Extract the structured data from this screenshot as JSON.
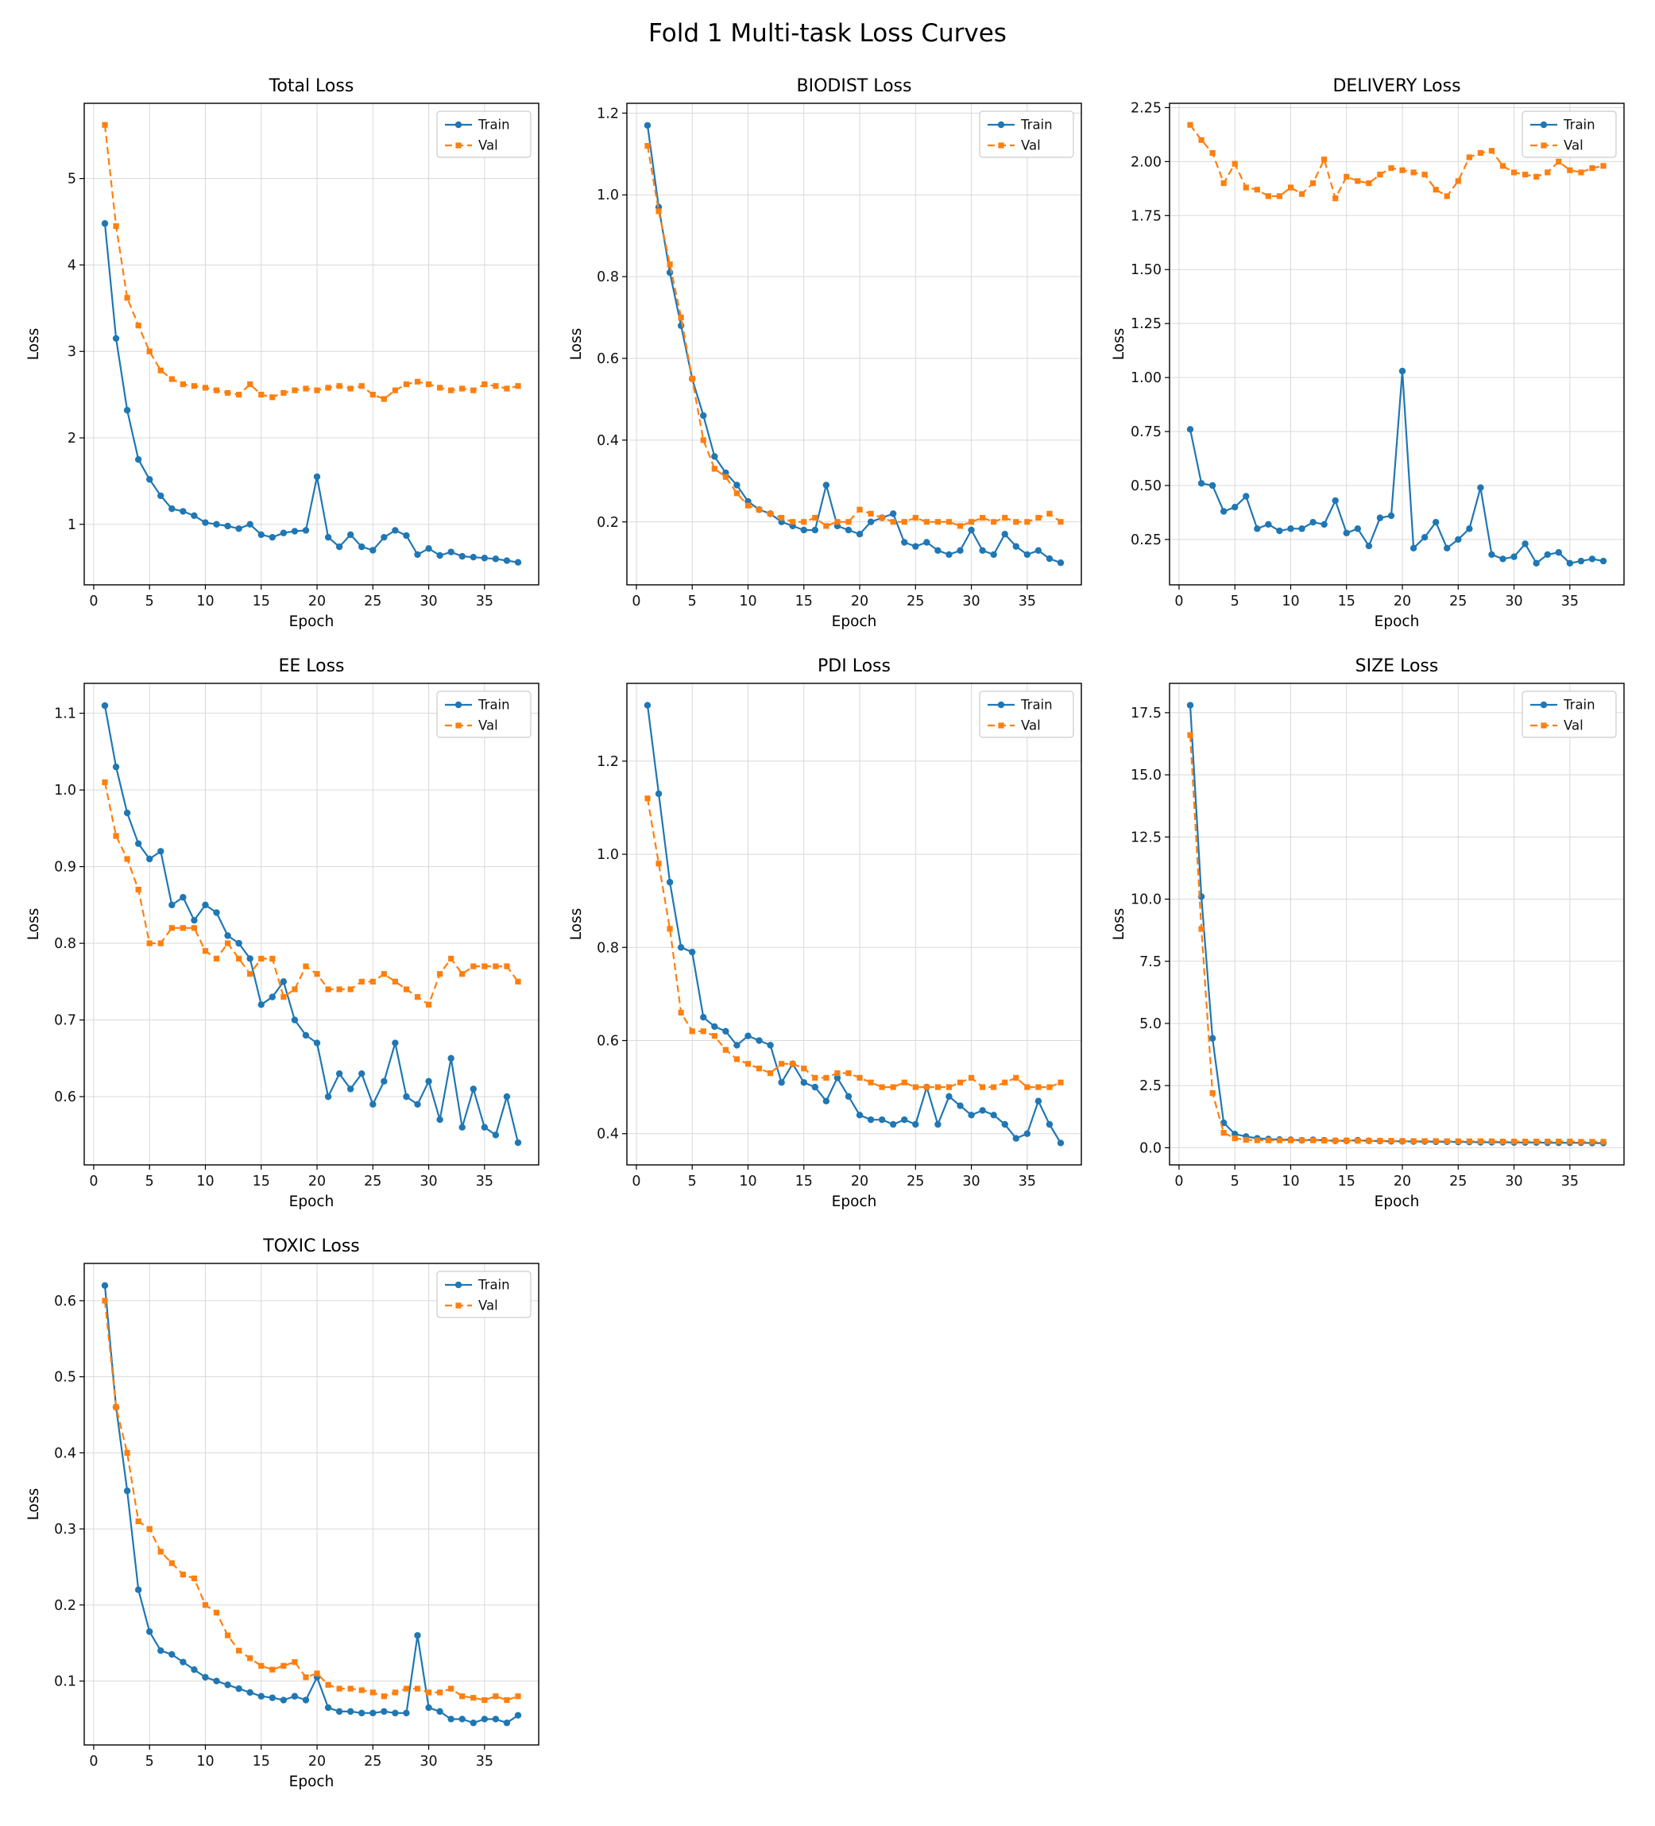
{
  "figure": {
    "title": "Fold 1 Multi-task Loss Curves"
  },
  "colors": {
    "train": "#1f77b4",
    "val": "#ff7f0e"
  },
  "chart_data": [
    {
      "type": "line",
      "title": "Total Loss",
      "xlabel": "Epoch",
      "ylabel": "Loss",
      "grid": true,
      "legend_position": "top-right",
      "xlim": [
        -0.85,
        39.85
      ],
      "ylim": [
        0.3,
        5.87
      ],
      "xticks": [
        0,
        5,
        10,
        15,
        20,
        25,
        30,
        35
      ],
      "yticks": [
        1,
        2,
        3,
        4,
        5
      ],
      "ytick_labels": [
        "1",
        "2",
        "3",
        "4",
        "5"
      ],
      "x": [
        1,
        2,
        3,
        4,
        5,
        6,
        7,
        8,
        9,
        10,
        11,
        12,
        13,
        14,
        15,
        16,
        17,
        18,
        19,
        20,
        21,
        22,
        23,
        24,
        25,
        26,
        27,
        28,
        29,
        30,
        31,
        32,
        33,
        34,
        35,
        36,
        37,
        38
      ],
      "series": [
        {
          "name": "Train",
          "color": "#1f77b4",
          "line": "solid",
          "marker": "circle",
          "values": [
            4.48,
            3.15,
            2.32,
            1.75,
            1.52,
            1.33,
            1.18,
            1.15,
            1.1,
            1.02,
            1.0,
            0.98,
            0.95,
            1.0,
            0.88,
            0.85,
            0.9,
            0.92,
            0.93,
            1.55,
            0.85,
            0.74,
            0.88,
            0.74,
            0.7,
            0.85,
            0.93,
            0.87,
            0.65,
            0.72,
            0.64,
            0.68,
            0.63,
            0.62,
            0.61,
            0.6,
            0.58,
            0.56
          ]
        },
        {
          "name": "Val",
          "color": "#ff7f0e",
          "line": "dashed",
          "marker": "square",
          "values": [
            5.62,
            4.45,
            3.62,
            3.3,
            3.0,
            2.78,
            2.68,
            2.62,
            2.6,
            2.58,
            2.55,
            2.52,
            2.5,
            2.62,
            2.5,
            2.47,
            2.52,
            2.55,
            2.57,
            2.55,
            2.58,
            2.6,
            2.57,
            2.6,
            2.5,
            2.45,
            2.55,
            2.62,
            2.65,
            2.62,
            2.58,
            2.55,
            2.57,
            2.55,
            2.62,
            2.6,
            2.57,
            2.6
          ]
        }
      ]
    },
    {
      "type": "line",
      "title": "BIODIST Loss",
      "xlabel": "Epoch",
      "ylabel": "Loss",
      "grid": true,
      "legend_position": "top-right",
      "xlim": [
        -0.85,
        39.85
      ],
      "ylim": [
        0.046,
        1.224
      ],
      "xticks": [
        0,
        5,
        10,
        15,
        20,
        25,
        30,
        35
      ],
      "yticks": [
        0.2,
        0.4,
        0.6,
        0.8,
        1.0,
        1.2
      ],
      "ytick_labels": [
        "0.2",
        "0.4",
        "0.6",
        "0.8",
        "1.0",
        "1.2"
      ],
      "x": [
        1,
        2,
        3,
        4,
        5,
        6,
        7,
        8,
        9,
        10,
        11,
        12,
        13,
        14,
        15,
        16,
        17,
        18,
        19,
        20,
        21,
        22,
        23,
        24,
        25,
        26,
        27,
        28,
        29,
        30,
        31,
        32,
        33,
        34,
        35,
        36,
        37,
        38
      ],
      "series": [
        {
          "name": "Train",
          "color": "#1f77b4",
          "line": "solid",
          "marker": "circle",
          "values": [
            1.17,
            0.97,
            0.81,
            0.68,
            0.55,
            0.46,
            0.36,
            0.32,
            0.29,
            0.25,
            0.23,
            0.22,
            0.2,
            0.19,
            0.18,
            0.18,
            0.29,
            0.19,
            0.18,
            0.17,
            0.2,
            0.21,
            0.22,
            0.15,
            0.14,
            0.15,
            0.13,
            0.12,
            0.13,
            0.18,
            0.13,
            0.12,
            0.17,
            0.14,
            0.12,
            0.13,
            0.11,
            0.1
          ]
        },
        {
          "name": "Val",
          "color": "#ff7f0e",
          "line": "dashed",
          "marker": "square",
          "values": [
            1.12,
            0.96,
            0.83,
            0.7,
            0.55,
            0.4,
            0.33,
            0.31,
            0.27,
            0.24,
            0.23,
            0.22,
            0.21,
            0.2,
            0.2,
            0.21,
            0.19,
            0.2,
            0.2,
            0.23,
            0.22,
            0.21,
            0.2,
            0.2,
            0.21,
            0.2,
            0.2,
            0.2,
            0.19,
            0.2,
            0.21,
            0.2,
            0.21,
            0.2,
            0.2,
            0.21,
            0.22,
            0.2
          ]
        }
      ]
    },
    {
      "type": "line",
      "title": "DELIVERY Loss",
      "xlabel": "Epoch",
      "ylabel": "Loss",
      "grid": true,
      "legend_position": "top-right",
      "xlim": [
        -0.85,
        39.85
      ],
      "ylim": [
        0.04,
        2.27
      ],
      "xticks": [
        0,
        5,
        10,
        15,
        20,
        25,
        30,
        35
      ],
      "yticks": [
        0.25,
        0.5,
        0.75,
        1.0,
        1.25,
        1.5,
        1.75,
        2.0,
        2.25
      ],
      "ytick_labels": [
        "0.25",
        "0.50",
        "0.75",
        "1.00",
        "1.25",
        "1.50",
        "1.75",
        "2.00",
        "2.25"
      ],
      "x": [
        1,
        2,
        3,
        4,
        5,
        6,
        7,
        8,
        9,
        10,
        11,
        12,
        13,
        14,
        15,
        16,
        17,
        18,
        19,
        20,
        21,
        22,
        23,
        24,
        25,
        26,
        27,
        28,
        29,
        30,
        31,
        32,
        33,
        34,
        35,
        36,
        37,
        38
      ],
      "series": [
        {
          "name": "Train",
          "color": "#1f77b4",
          "line": "solid",
          "marker": "circle",
          "values": [
            0.76,
            0.51,
            0.5,
            0.38,
            0.4,
            0.45,
            0.3,
            0.32,
            0.29,
            0.3,
            0.3,
            0.33,
            0.32,
            0.43,
            0.28,
            0.3,
            0.22,
            0.35,
            0.36,
            1.03,
            0.21,
            0.26,
            0.33,
            0.21,
            0.25,
            0.3,
            0.49,
            0.18,
            0.16,
            0.17,
            0.23,
            0.14,
            0.18,
            0.19,
            0.14,
            0.15,
            0.16,
            0.15
          ]
        },
        {
          "name": "Val",
          "color": "#ff7f0e",
          "line": "dashed",
          "marker": "square",
          "values": [
            2.17,
            2.1,
            2.04,
            1.9,
            1.99,
            1.88,
            1.87,
            1.84,
            1.84,
            1.88,
            1.85,
            1.9,
            2.01,
            1.83,
            1.93,
            1.91,
            1.9,
            1.94,
            1.97,
            1.96,
            1.95,
            1.94,
            1.87,
            1.84,
            1.91,
            2.02,
            2.04,
            2.05,
            1.98,
            1.95,
            1.94,
            1.93,
            1.95,
            2.0,
            1.96,
            1.95,
            1.97,
            1.98
          ]
        }
      ]
    },
    {
      "type": "line",
      "title": "EE Loss",
      "xlabel": "Epoch",
      "ylabel": "Loss",
      "grid": true,
      "legend_position": "top-right",
      "xlim": [
        -0.85,
        39.85
      ],
      "ylim": [
        0.511,
        1.139
      ],
      "xticks": [
        0,
        5,
        10,
        15,
        20,
        25,
        30,
        35
      ],
      "yticks": [
        0.6,
        0.7,
        0.8,
        0.9,
        1.0,
        1.1
      ],
      "ytick_labels": [
        "0.6",
        "0.7",
        "0.8",
        "0.9",
        "1.0",
        "1.1"
      ],
      "x": [
        1,
        2,
        3,
        4,
        5,
        6,
        7,
        8,
        9,
        10,
        11,
        12,
        13,
        14,
        15,
        16,
        17,
        18,
        19,
        20,
        21,
        22,
        23,
        24,
        25,
        26,
        27,
        28,
        29,
        30,
        31,
        32,
        33,
        34,
        35,
        36,
        37,
        38
      ],
      "series": [
        {
          "name": "Train",
          "color": "#1f77b4",
          "line": "solid",
          "marker": "circle",
          "values": [
            1.11,
            1.03,
            0.97,
            0.93,
            0.91,
            0.92,
            0.85,
            0.86,
            0.83,
            0.85,
            0.84,
            0.81,
            0.8,
            0.78,
            0.72,
            0.73,
            0.75,
            0.7,
            0.68,
            0.67,
            0.6,
            0.63,
            0.61,
            0.63,
            0.59,
            0.62,
            0.67,
            0.6,
            0.59,
            0.62,
            0.57,
            0.65,
            0.56,
            0.61,
            0.56,
            0.55,
            0.6,
            0.54
          ]
        },
        {
          "name": "Val",
          "color": "#ff7f0e",
          "line": "dashed",
          "marker": "square",
          "values": [
            1.01,
            0.94,
            0.91,
            0.87,
            0.8,
            0.8,
            0.82,
            0.82,
            0.82,
            0.79,
            0.78,
            0.8,
            0.78,
            0.76,
            0.78,
            0.78,
            0.73,
            0.74,
            0.77,
            0.76,
            0.74,
            0.74,
            0.74,
            0.75,
            0.75,
            0.76,
            0.75,
            0.74,
            0.73,
            0.72,
            0.76,
            0.78,
            0.76,
            0.77,
            0.77,
            0.77,
            0.77,
            0.75
          ]
        }
      ]
    },
    {
      "type": "line",
      "title": "PDI Loss",
      "xlabel": "Epoch",
      "ylabel": "Loss",
      "grid": true,
      "legend_position": "top-right",
      "xlim": [
        -0.85,
        39.85
      ],
      "ylim": [
        0.333,
        1.367
      ],
      "xticks": [
        0,
        5,
        10,
        15,
        20,
        25,
        30,
        35
      ],
      "yticks": [
        0.4,
        0.6,
        0.8,
        1.0,
        1.2
      ],
      "ytick_labels": [
        "0.4",
        "0.6",
        "0.8",
        "1.0",
        "1.2"
      ],
      "x": [
        1,
        2,
        3,
        4,
        5,
        6,
        7,
        8,
        9,
        10,
        11,
        12,
        13,
        14,
        15,
        16,
        17,
        18,
        19,
        20,
        21,
        22,
        23,
        24,
        25,
        26,
        27,
        28,
        29,
        30,
        31,
        32,
        33,
        34,
        35,
        36,
        37,
        38
      ],
      "series": [
        {
          "name": "Train",
          "color": "#1f77b4",
          "line": "solid",
          "marker": "circle",
          "values": [
            1.32,
            1.13,
            0.94,
            0.8,
            0.79,
            0.65,
            0.63,
            0.62,
            0.59,
            0.61,
            0.6,
            0.59,
            0.51,
            0.55,
            0.51,
            0.5,
            0.47,
            0.52,
            0.48,
            0.44,
            0.43,
            0.43,
            0.42,
            0.43,
            0.42,
            0.5,
            0.42,
            0.48,
            0.46,
            0.44,
            0.45,
            0.44,
            0.42,
            0.39,
            0.4,
            0.47,
            0.42,
            0.38
          ]
        },
        {
          "name": "Val",
          "color": "#ff7f0e",
          "line": "dashed",
          "marker": "square",
          "values": [
            1.12,
            0.98,
            0.84,
            0.66,
            0.62,
            0.62,
            0.61,
            0.58,
            0.56,
            0.55,
            0.54,
            0.53,
            0.55,
            0.55,
            0.54,
            0.52,
            0.52,
            0.53,
            0.53,
            0.52,
            0.51,
            0.5,
            0.5,
            0.51,
            0.5,
            0.5,
            0.5,
            0.5,
            0.51,
            0.52,
            0.5,
            0.5,
            0.51,
            0.52,
            0.5,
            0.5,
            0.5,
            0.51
          ]
        }
      ]
    },
    {
      "type": "line",
      "title": "SIZE Loss",
      "xlabel": "Epoch",
      "ylabel": "Loss",
      "grid": true,
      "legend_position": "top-right",
      "xlim": [
        -0.85,
        39.85
      ],
      "ylim": [
        -0.69,
        18.68
      ],
      "xticks": [
        0,
        5,
        10,
        15,
        20,
        25,
        30,
        35
      ],
      "yticks": [
        0.0,
        2.5,
        5.0,
        7.5,
        10.0,
        12.5,
        15.0,
        17.5
      ],
      "ytick_labels": [
        "0.0",
        "2.5",
        "5.0",
        "7.5",
        "10.0",
        "12.5",
        "15.0",
        "17.5"
      ],
      "x": [
        1,
        2,
        3,
        4,
        5,
        6,
        7,
        8,
        9,
        10,
        11,
        12,
        13,
        14,
        15,
        16,
        17,
        18,
        19,
        20,
        21,
        22,
        23,
        24,
        25,
        26,
        27,
        28,
        29,
        30,
        31,
        32,
        33,
        34,
        35,
        36,
        37,
        38
      ],
      "series": [
        {
          "name": "Train",
          "color": "#1f77b4",
          "line": "solid",
          "marker": "circle",
          "values": [
            17.8,
            10.1,
            4.4,
            1.0,
            0.55,
            0.45,
            0.38,
            0.35,
            0.33,
            0.32,
            0.3,
            0.32,
            0.3,
            0.28,
            0.28,
            0.3,
            0.28,
            0.27,
            0.26,
            0.26,
            0.25,
            0.25,
            0.24,
            0.24,
            0.23,
            0.23,
            0.22,
            0.22,
            0.22,
            0.21,
            0.21,
            0.21,
            0.2,
            0.2,
            0.2,
            0.2,
            0.19,
            0.19
          ]
        },
        {
          "name": "Val",
          "color": "#ff7f0e",
          "line": "dashed",
          "marker": "square",
          "values": [
            16.6,
            8.8,
            2.2,
            0.6,
            0.38,
            0.32,
            0.3,
            0.3,
            0.3,
            0.3,
            0.3,
            0.3,
            0.29,
            0.29,
            0.29,
            0.28,
            0.28,
            0.28,
            0.28,
            0.27,
            0.27,
            0.27,
            0.27,
            0.26,
            0.26,
            0.26,
            0.26,
            0.26,
            0.25,
            0.25,
            0.25,
            0.25,
            0.25,
            0.25,
            0.25,
            0.24,
            0.24,
            0.24
          ]
        }
      ]
    },
    {
      "type": "line",
      "title": "TOXIC Loss",
      "xlabel": "Epoch",
      "ylabel": "Loss",
      "grid": true,
      "legend_position": "top-right",
      "xlim": [
        -0.85,
        39.85
      ],
      "ylim": [
        0.016,
        0.649
      ],
      "xticks": [
        0,
        5,
        10,
        15,
        20,
        25,
        30,
        35
      ],
      "yticks": [
        0.1,
        0.2,
        0.3,
        0.4,
        0.5,
        0.6
      ],
      "ytick_labels": [
        "0.1",
        "0.2",
        "0.3",
        "0.4",
        "0.5",
        "0.6"
      ],
      "x": [
        1,
        2,
        3,
        4,
        5,
        6,
        7,
        8,
        9,
        10,
        11,
        12,
        13,
        14,
        15,
        16,
        17,
        18,
        19,
        20,
        21,
        22,
        23,
        24,
        25,
        26,
        27,
        28,
        29,
        30,
        31,
        32,
        33,
        34,
        35,
        36,
        37,
        38
      ],
      "series": [
        {
          "name": "Train",
          "color": "#1f77b4",
          "line": "solid",
          "marker": "circle",
          "values": [
            0.62,
            0.46,
            0.35,
            0.22,
            0.165,
            0.14,
            0.135,
            0.125,
            0.115,
            0.105,
            0.1,
            0.095,
            0.09,
            0.085,
            0.08,
            0.078,
            0.075,
            0.08,
            0.075,
            0.105,
            0.065,
            0.06,
            0.06,
            0.058,
            0.058,
            0.06,
            0.058,
            0.058,
            0.16,
            0.065,
            0.06,
            0.05,
            0.05,
            0.045,
            0.05,
            0.05,
            0.045,
            0.055
          ]
        },
        {
          "name": "Val",
          "color": "#ff7f0e",
          "line": "dashed",
          "marker": "square",
          "values": [
            0.6,
            0.46,
            0.4,
            0.31,
            0.3,
            0.27,
            0.255,
            0.24,
            0.235,
            0.2,
            0.19,
            0.16,
            0.14,
            0.13,
            0.12,
            0.115,
            0.12,
            0.125,
            0.105,
            0.11,
            0.095,
            0.09,
            0.09,
            0.088,
            0.085,
            0.08,
            0.085,
            0.09,
            0.09,
            0.085,
            0.085,
            0.09,
            0.08,
            0.078,
            0.075,
            0.08,
            0.075,
            0.08
          ]
        }
      ]
    }
  ]
}
